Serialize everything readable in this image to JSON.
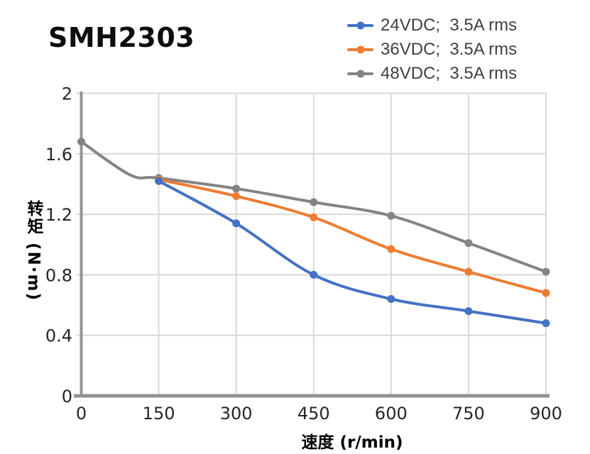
{
  "title": "SMH2303",
  "axes": {
    "x": {
      "label": "速度 (r/min)",
      "min": 0,
      "max": 900,
      "ticks": [
        0,
        150,
        300,
        450,
        600,
        750,
        900
      ],
      "tick_labels": [
        "0",
        "150",
        "300",
        "450",
        "600",
        "750",
        "900"
      ]
    },
    "y": {
      "label": "转矩 (N·m)",
      "min": 0,
      "max": 2,
      "ticks": [
        0,
        0.4,
        0.8,
        1.2,
        1.6,
        2
      ],
      "tick_labels": [
        "0",
        "0.4",
        "0.8",
        "1.2",
        "1.6",
        "2"
      ]
    }
  },
  "style_colors": {
    "grid": "#d9d9d9",
    "axis": "#949494",
    "tick_text": "#262626",
    "legend_text": "#404040"
  },
  "chart_data": {
    "type": "line",
    "title": "SMH2303",
    "xlabel": "速度 (r/min)",
    "ylabel": "转矩 (N·m)",
    "xlim": [
      0,
      900
    ],
    "ylim": [
      0,
      2
    ],
    "grid": true,
    "legend_position": "top-right",
    "series": [
      {
        "name": "24VDC;  3.5A rms",
        "color": "#4472C4",
        "data": {
          "x": [
            150,
            300,
            450,
            600,
            750,
            900
          ],
          "y": [
            1.42,
            1.14,
            0.8,
            0.64,
            0.56,
            0.48
          ]
        },
        "trace": [
          [
            150,
            1.42
          ],
          [
            300,
            1.14
          ],
          [
            450,
            0.8
          ],
          [
            600,
            0.64
          ],
          [
            750,
            0.56
          ],
          [
            900,
            0.48
          ]
        ]
      },
      {
        "name": "36VDC;  3.5A rms",
        "color": "#ED7D31",
        "data": {
          "x": [
            150,
            300,
            450,
            600,
            750,
            900
          ],
          "y": [
            1.43,
            1.32,
            1.18,
            0.97,
            0.82,
            0.68
          ]
        },
        "trace": [
          [
            150,
            1.43
          ],
          [
            300,
            1.32
          ],
          [
            450,
            1.18
          ],
          [
            600,
            0.97
          ],
          [
            750,
            0.82
          ],
          [
            900,
            0.68
          ]
        ]
      },
      {
        "name": "48VDC;  3.5A rms",
        "color": "#848484",
        "data": {
          "x": [
            0,
            150,
            300,
            450,
            600,
            750,
            900
          ],
          "y": [
            1.68,
            1.44,
            1.37,
            1.28,
            1.19,
            1.01,
            0.82
          ]
        },
        "trace": [
          [
            0,
            1.68
          ],
          [
            95,
            1.46
          ],
          [
            150,
            1.44
          ],
          [
            300,
            1.37
          ],
          [
            450,
            1.28
          ],
          [
            600,
            1.19
          ],
          [
            750,
            1.01
          ],
          [
            900,
            0.82
          ]
        ]
      }
    ]
  }
}
